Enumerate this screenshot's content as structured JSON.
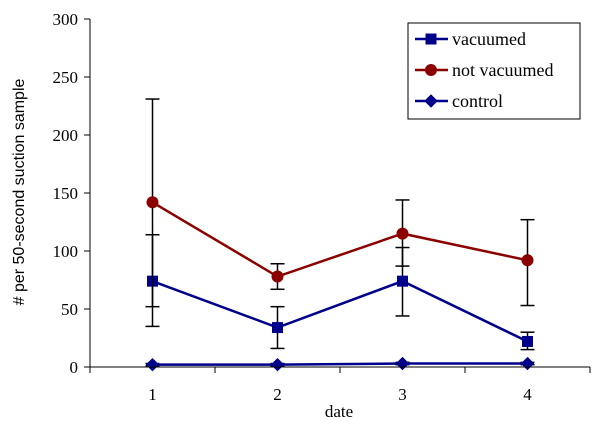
{
  "chart_data": {
    "type": "line",
    "title": "",
    "xlabel": "date",
    "ylabel": "# per 50-second suction sample",
    "categories": [
      "1",
      "2",
      "3",
      "4"
    ],
    "ylim": [
      0,
      300
    ],
    "yticks": [
      "0",
      "50",
      "100",
      "150",
      "200",
      "250",
      "300"
    ],
    "grid": false,
    "legend_position": "top-right",
    "series": [
      {
        "name": "vacuumed",
        "color": "#00008B",
        "marker": "square",
        "values": [
          74,
          34,
          74,
          22
        ],
        "error_low": [
          35,
          16,
          44,
          15
        ],
        "error_high": [
          114,
          52,
          103,
          30
        ]
      },
      {
        "name": "not vacuumed",
        "color": "#8B0000",
        "marker": "circle",
        "values": [
          142,
          78,
          115,
          92
        ],
        "error_low": [
          52,
          67,
          87,
          53
        ],
        "error_high": [
          231,
          89,
          144,
          127
        ]
      },
      {
        "name": "control",
        "color": "#00008B",
        "marker": "diamond",
        "values": [
          2,
          2,
          3,
          3
        ],
        "error_low": [
          1,
          1,
          2,
          2
        ],
        "error_high": [
          3,
          3,
          4,
          4
        ]
      }
    ]
  }
}
